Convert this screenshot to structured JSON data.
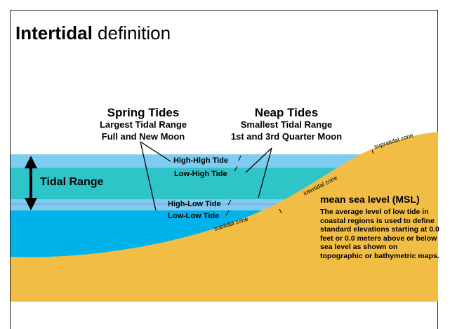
{
  "title": {
    "bold": "Intertidal",
    "rest": " definition"
  },
  "spring": {
    "heading": "Spring Tides",
    "line1": "Largest Tidal Range",
    "line2": "Full and New Moon"
  },
  "neap": {
    "heading": "Neap Tides",
    "line1": "Smallest Tidal Range",
    "line2": "1st and 3rd Quarter Moon"
  },
  "tide_levels": {
    "high_high": "High-High Tide",
    "low_high": "Low-High Tide",
    "high_low": "High-Low Tide",
    "low_low": "Low-Low Tide"
  },
  "tidal_range": "Tidal Range",
  "zones": {
    "supratidal": "supratidal zone",
    "intertidal": "intertidal zone",
    "subtidal": "subtidal zone"
  },
  "msl": {
    "heading": "mean sea level (MSL)",
    "description": "The average level of low tide in coastal regions is used to define standard elevations starting at 0.0 feet or 0.0 meters above or below sea level as shown on topographic or bathymetric maps."
  },
  "colors": {
    "sand": "#f2bd45",
    "high_band": "#7ecdf0",
    "mid_band": "#2ec4c8",
    "low_band": "#7ecdf0",
    "deep_water": "#00b2ea"
  }
}
